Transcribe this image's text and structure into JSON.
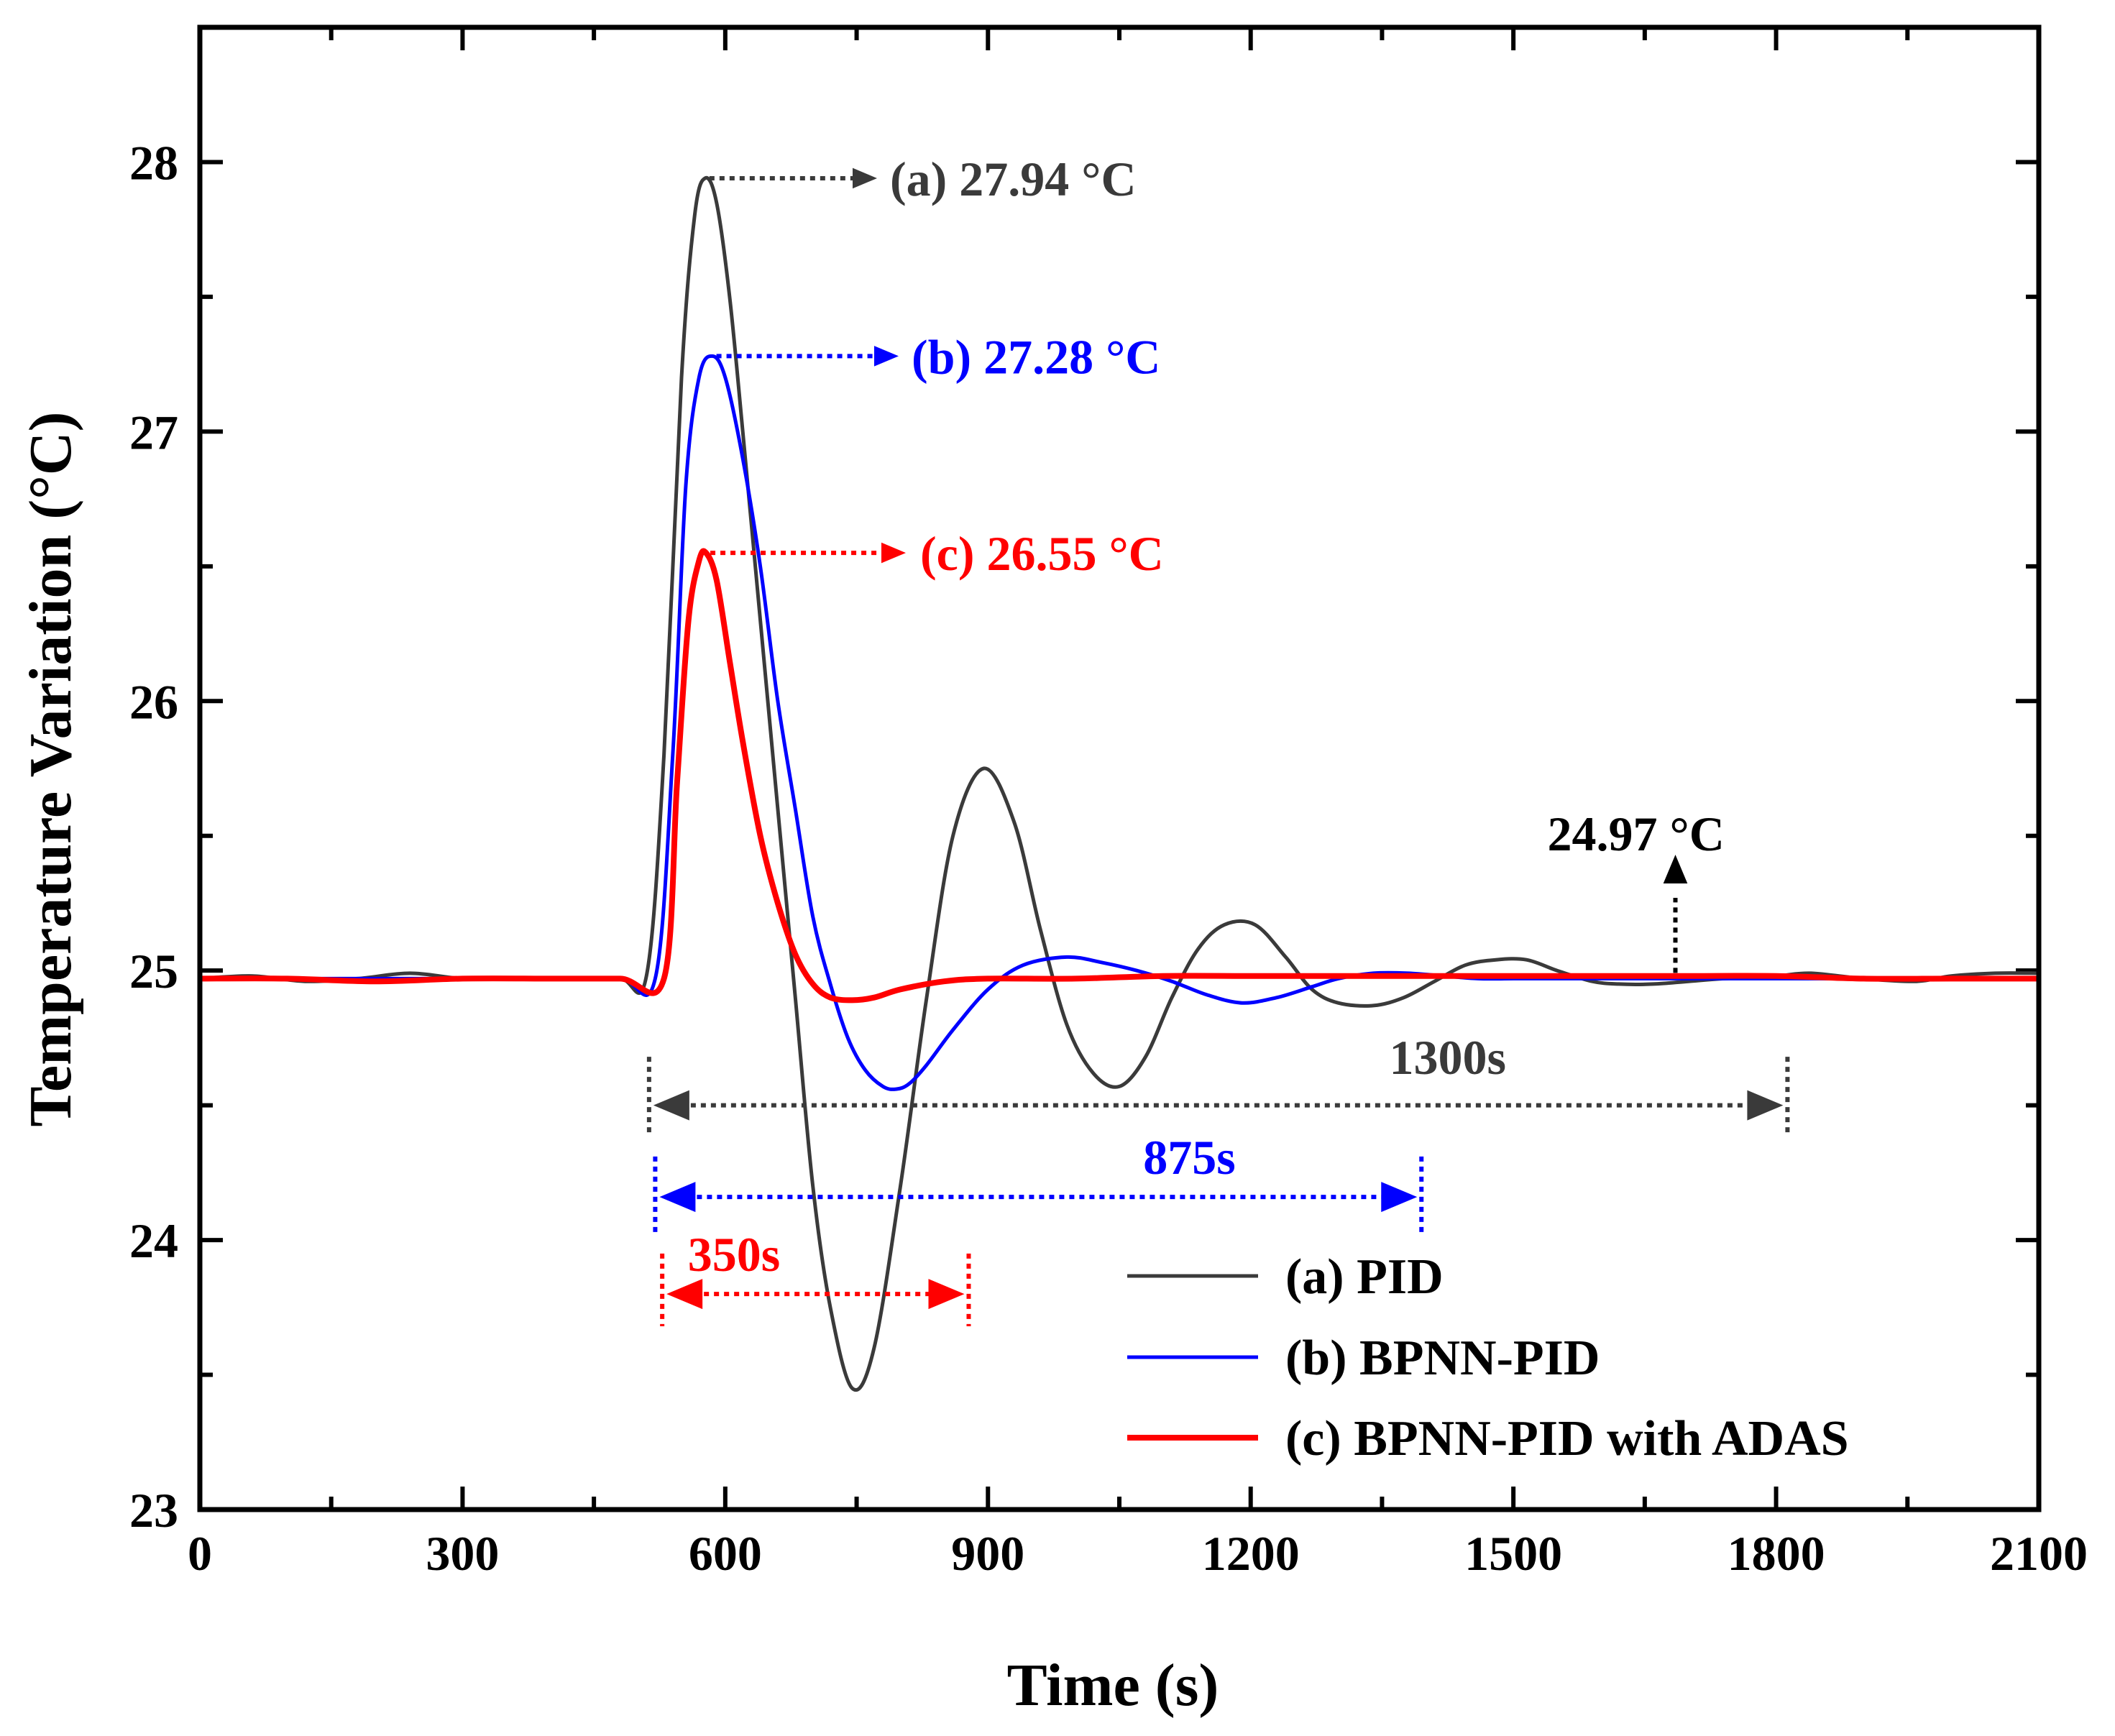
{
  "chart_data": {
    "type": "line",
    "xlabel": "Time (s)",
    "ylabel": "Temperature Variation (°C)",
    "xlim": [
      0,
      2100
    ],
    "ylim": [
      23,
      28.5
    ],
    "xticks": [
      0,
      300,
      600,
      900,
      1200,
      1500,
      1800,
      2100
    ],
    "yticks": [
      23,
      24,
      25,
      26,
      27,
      28
    ],
    "colors": {
      "a": "#3a3a3a",
      "b": "#0000ff",
      "c": "#ff0000"
    },
    "series": [
      {
        "name": "(a) PID",
        "color": "#3a3a3a",
        "x": [
          0,
          60,
          120,
          180,
          240,
          300,
          360,
          420,
          480,
          510,
          530,
          550,
          565,
          577,
          590,
          605,
          620,
          640,
          660,
          680,
          700,
          720,
          745,
          770,
          800,
          830,
          860,
          895,
          930,
          960,
          990,
          1020,
          1050,
          1080,
          1110,
          1140,
          1170,
          1205,
          1240,
          1270,
          1300,
          1340,
          1375,
          1410,
          1445,
          1480,
          1515,
          1550,
          1590,
          1620,
          1660,
          1700,
          1740,
          1800,
          1840,
          1900,
          1960,
          2000,
          2050,
          2100
        ],
        "y": [
          24.97,
          24.98,
          24.96,
          24.97,
          24.99,
          24.97,
          24.97,
          24.97,
          24.97,
          24.98,
          25.8,
          27.2,
          27.8,
          27.94,
          27.85,
          27.5,
          27.0,
          26.3,
          25.6,
          24.9,
          24.2,
          23.75,
          23.45,
          23.6,
          24.2,
          24.9,
          25.5,
          25.75,
          25.55,
          25.15,
          24.8,
          24.62,
          24.57,
          24.68,
          24.9,
          25.08,
          25.17,
          25.17,
          25.05,
          24.93,
          24.88,
          24.87,
          24.9,
          24.96,
          25.02,
          25.04,
          25.04,
          25.0,
          24.96,
          24.95,
          24.95,
          24.96,
          24.97,
          24.98,
          24.99,
          24.97,
          24.96,
          24.98,
          24.99,
          24.99
        ]
      },
      {
        "name": "(b) BPNN-PID",
        "color": "#0000ff",
        "x": [
          0,
          100,
          200,
          300,
          400,
          480,
          520,
          540,
          555,
          570,
          585,
          600,
          620,
          640,
          660,
          680,
          700,
          720,
          740,
          760,
          780,
          795,
          810,
          830,
          860,
          900,
          940,
          990,
          1030,
          1070,
          1110,
          1150,
          1190,
          1230,
          1270,
          1300,
          1340,
          1380,
          1420,
          1460,
          1500,
          1550,
          1600,
          1700,
          1800,
          1900,
          2000,
          2100
        ],
        "y": [
          24.97,
          24.97,
          24.97,
          24.97,
          24.97,
          24.97,
          24.97,
          25.8,
          26.8,
          27.2,
          27.28,
          27.2,
          26.9,
          26.5,
          26.0,
          25.6,
          25.2,
          24.95,
          24.75,
          24.63,
          24.57,
          24.56,
          24.58,
          24.65,
          24.78,
          24.93,
          25.02,
          25.05,
          25.03,
          25.0,
          24.96,
          24.91,
          24.88,
          24.9,
          24.94,
          24.97,
          24.99,
          24.99,
          24.98,
          24.97,
          24.97,
          24.97,
          24.97,
          24.97,
          24.97,
          24.97,
          24.97,
          24.97
        ]
      },
      {
        "name": "(c) BPNN-PID with ADAS",
        "color": "#ff0000",
        "x": [
          0,
          100,
          200,
          300,
          400,
          480,
          530,
          545,
          558,
          570,
          578,
          590,
          605,
          620,
          640,
          660,
          680,
          700,
          720,
          745,
          770,
          800,
          850,
          900,
          1000,
          1100,
          1200,
          1300,
          1400,
          1500,
          1600,
          1700,
          1800,
          1900,
          2000,
          2100
        ],
        "y": [
          24.97,
          24.97,
          24.96,
          24.97,
          24.97,
          24.97,
          24.97,
          25.7,
          26.3,
          26.52,
          26.55,
          26.45,
          26.15,
          25.85,
          25.5,
          25.25,
          25.06,
          24.95,
          24.9,
          24.89,
          24.9,
          24.93,
          24.96,
          24.97,
          24.97,
          24.98,
          24.98,
          24.98,
          24.98,
          24.98,
          24.98,
          24.98,
          24.98,
          24.97,
          24.97,
          24.97
        ]
      }
    ],
    "annotations": {
      "peak_a": {
        "label": "(a) 27.94 °C",
        "value": 27.94,
        "time": 577
      },
      "peak_b": {
        "label": "(b) 27.28 °C",
        "value": 27.28,
        "time": 585
      },
      "peak_c": {
        "label": "(c) 26.55 °C",
        "value": 26.55,
        "time": 578
      },
      "steady": {
        "label": "24.97 °C",
        "value": 24.97,
        "time": 1685
      },
      "span_a": {
        "label": "1300s",
        "start": 513,
        "end": 1813
      },
      "span_b": {
        "label": "875s",
        "start": 520,
        "end": 1395
      },
      "span_c": {
        "label": "350s",
        "start": 528,
        "end": 878
      }
    },
    "legend": {
      "position": "bottom-right",
      "entries": [
        "(a) PID",
        "(b) BPNN-PID",
        "(c) BPNN-PID with ADAS"
      ]
    }
  }
}
